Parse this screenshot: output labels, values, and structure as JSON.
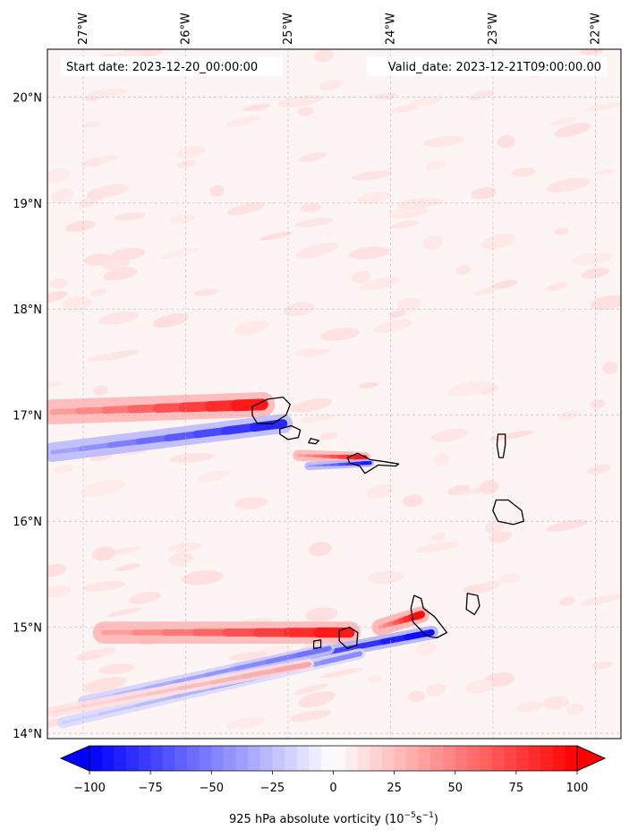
{
  "map": {
    "lon_range": [
      -27.35,
      -21.75
    ],
    "lat_range": [
      13.95,
      20.45
    ],
    "lon_ticks": [
      {
        "value": -27,
        "label": "27°W"
      },
      {
        "value": -26,
        "label": "26°W"
      },
      {
        "value": -25,
        "label": "25°W"
      },
      {
        "value": -24,
        "label": "24°W"
      },
      {
        "value": -23,
        "label": "23°W"
      },
      {
        "value": -22,
        "label": "22°W"
      }
    ],
    "lat_ticks": [
      {
        "value": 14,
        "label": "14°N"
      },
      {
        "value": 15,
        "label": "15°N"
      },
      {
        "value": 16,
        "label": "16°N"
      },
      {
        "value": 17,
        "label": "17°N"
      },
      {
        "value": 18,
        "label": "18°N"
      },
      {
        "value": 19,
        "label": "19°N"
      },
      {
        "value": 20,
        "label": "20°N"
      }
    ],
    "gridlines": true,
    "start_date_label": "Start date: 2023-12-20_00:00:00",
    "valid_date_label": "Valid_date: 2023-12-21T09:00:00.00",
    "islands": [
      {
        "name": "Santo Antão",
        "coords": [
          [
            -25.35,
            17.08
          ],
          [
            -25.2,
            17.15
          ],
          [
            -25.05,
            17.17
          ],
          [
            -24.98,
            17.1
          ],
          [
            -25.02,
            17.0
          ],
          [
            -25.15,
            16.92
          ],
          [
            -25.3,
            16.92
          ],
          [
            -25.35,
            17.0
          ]
        ]
      },
      {
        "name": "São Vicente",
        "coords": [
          [
            -25.08,
            16.87
          ],
          [
            -24.97,
            16.9
          ],
          [
            -24.88,
            16.86
          ],
          [
            -24.9,
            16.79
          ],
          [
            -25.0,
            16.77
          ],
          [
            -25.08,
            16.82
          ]
        ]
      },
      {
        "name": "Santa Luzia",
        "coords": [
          [
            -24.78,
            16.78
          ],
          [
            -24.7,
            16.76
          ],
          [
            -24.73,
            16.73
          ],
          [
            -24.8,
            16.74
          ]
        ]
      },
      {
        "name": "São Nicolau",
        "coords": [
          [
            -24.42,
            16.6
          ],
          [
            -24.32,
            16.64
          ],
          [
            -24.2,
            16.58
          ],
          [
            -24.05,
            16.56
          ],
          [
            -23.92,
            16.54
          ],
          [
            -23.95,
            16.52
          ],
          [
            -24.12,
            16.53
          ],
          [
            -24.25,
            16.45
          ],
          [
            -24.3,
            16.52
          ],
          [
            -24.4,
            16.55
          ]
        ]
      },
      {
        "name": "Sal",
        "coords": [
          [
            -22.95,
            16.82
          ],
          [
            -22.88,
            16.82
          ],
          [
            -22.88,
            16.72
          ],
          [
            -22.9,
            16.6
          ],
          [
            -22.94,
            16.6
          ],
          [
            -22.96,
            16.72
          ]
        ]
      },
      {
        "name": "Boa Vista",
        "coords": [
          [
            -22.97,
            16.2
          ],
          [
            -22.85,
            16.2
          ],
          [
            -22.72,
            16.1
          ],
          [
            -22.7,
            16.0
          ],
          [
            -22.8,
            15.97
          ],
          [
            -22.95,
            16.0
          ],
          [
            -23.0,
            16.1
          ]
        ]
      },
      {
        "name": "Maio",
        "coords": [
          [
            -23.25,
            15.32
          ],
          [
            -23.15,
            15.3
          ],
          [
            -23.13,
            15.2
          ],
          [
            -23.18,
            15.12
          ],
          [
            -23.26,
            15.17
          ]
        ]
      },
      {
        "name": "Santiago",
        "coords": [
          [
            -23.77,
            15.3
          ],
          [
            -23.7,
            15.27
          ],
          [
            -23.68,
            15.18
          ],
          [
            -23.57,
            15.1
          ],
          [
            -23.45,
            14.95
          ],
          [
            -23.55,
            14.9
          ],
          [
            -23.65,
            14.92
          ],
          [
            -23.78,
            15.05
          ],
          [
            -23.8,
            15.18
          ]
        ]
      },
      {
        "name": "Fogo",
        "coords": [
          [
            -24.5,
            14.97
          ],
          [
            -24.4,
            15.0
          ],
          [
            -24.32,
            14.95
          ],
          [
            -24.33,
            14.83
          ],
          [
            -24.42,
            14.8
          ],
          [
            -24.5,
            14.87
          ]
        ]
      },
      {
        "name": "Brava",
        "coords": [
          [
            -24.75,
            14.87
          ],
          [
            -24.68,
            14.88
          ],
          [
            -24.68,
            14.81
          ],
          [
            -24.75,
            14.8
          ]
        ]
      }
    ]
  },
  "colorbar": {
    "cmap": "bwr",
    "vmin": -100,
    "vmax": 100,
    "levels_step": 5,
    "extend": "both",
    "ticks": [
      {
        "value": -100,
        "label": "−100"
      },
      {
        "value": -75,
        "label": "−75"
      },
      {
        "value": -50,
        "label": "−50"
      },
      {
        "value": -25,
        "label": "−25"
      },
      {
        "value": 0,
        "label": "0"
      },
      {
        "value": 25,
        "label": "25"
      },
      {
        "value": 50,
        "label": "50"
      },
      {
        "value": 75,
        "label": "75"
      },
      {
        "value": 100,
        "label": "100"
      }
    ],
    "label_main": "925 hPa absolute vorticity (10",
    "label_exp1": "−5",
    "label_mid": "s",
    "label_exp2": "−1",
    "label_end": ")"
  },
  "vorticity_features": [
    {
      "lon0": -27.3,
      "lat0": 17.03,
      "lon1": -25.25,
      "lat1": 17.1,
      "width": 0.09,
      "value": 90
    },
    {
      "lon0": -27.3,
      "lat0": 16.65,
      "lon1": -25.05,
      "lat1": 16.92,
      "width": 0.07,
      "value": -85
    },
    {
      "lon0": -24.9,
      "lat0": 16.62,
      "lon1": -24.25,
      "lat1": 16.6,
      "width": 0.04,
      "value": 90
    },
    {
      "lon0": -24.8,
      "lat0": 16.52,
      "lon1": -24.2,
      "lat1": 16.55,
      "width": 0.03,
      "value": -90
    },
    {
      "lon0": -26.8,
      "lat0": 14.95,
      "lon1": -24.4,
      "lat1": 14.95,
      "width": 0.08,
      "value": 90
    },
    {
      "lon0": -24.1,
      "lat0": 15.0,
      "lon1": -23.7,
      "lat1": 15.12,
      "width": 0.06,
      "value": 95
    },
    {
      "lon0": -25.5,
      "lat0": 14.6,
      "lon1": -23.6,
      "lat1": 14.95,
      "width": 0.05,
      "value": -95
    },
    {
      "lon0": -27.0,
      "lat0": 14.3,
      "lon1": -24.6,
      "lat1": 14.8,
      "width": 0.04,
      "value": -55
    },
    {
      "lon0": -27.2,
      "lat0": 14.1,
      "lon1": -24.3,
      "lat1": 14.75,
      "width": 0.04,
      "value": -45
    },
    {
      "lon0": -27.3,
      "lat0": 14.2,
      "lon1": -24.8,
      "lat1": 14.65,
      "width": 0.04,
      "value": 35
    }
  ]
}
